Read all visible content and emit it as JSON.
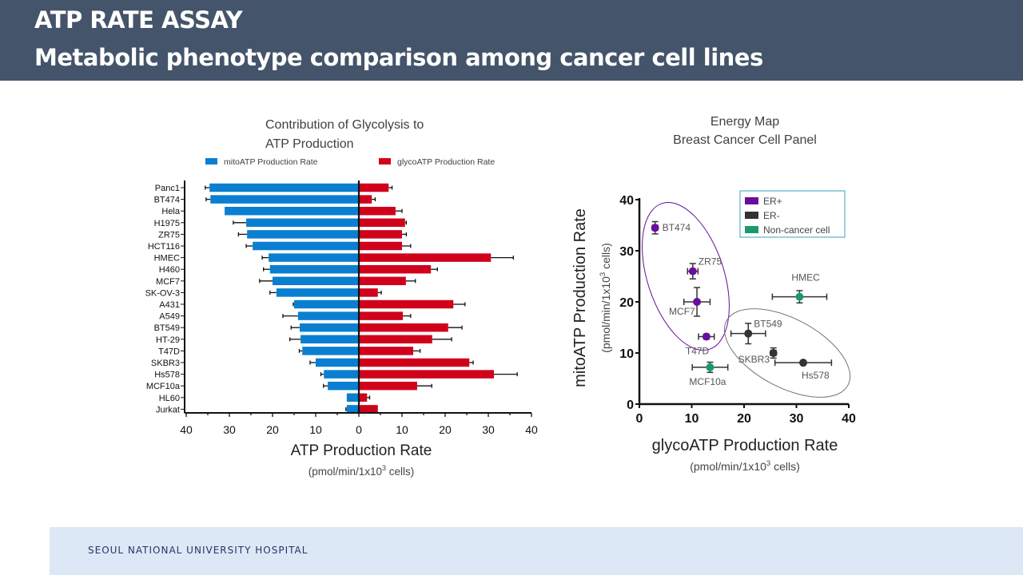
{
  "header": {
    "title": "ATP RATE ASSAY",
    "subtitle": "Metabolic phenotype comparison among cancer cell lines"
  },
  "footer": {
    "label": "SEOUL NATIONAL UNIVERSITY HOSPITAL"
  },
  "colors": {
    "header_bg": "#44546a",
    "footer_bg": "#dde8f6",
    "mito": "#0a7fd1",
    "glyco": "#d0021b",
    "er_pos": "#6a0d9c",
    "er_neg": "#333333",
    "non_cancer": "#1a9a6a"
  },
  "chart_data": [
    {
      "type": "bar",
      "orientation": "horizontal-diverging",
      "title_line1": "Contribution of Glycolysis to",
      "title_line2": "ATP Production",
      "xlabel": "ATP Production Rate",
      "xlabel_units": "(pmol/min/1x10",
      "xlabel_units_sup": "3",
      "xlabel_units_tail": " cells)",
      "xlim": [
        -40,
        40
      ],
      "xticks": [
        -40,
        -30,
        -20,
        -10,
        0,
        10,
        20,
        30,
        40
      ],
      "xtick_labels": [
        "40",
        "30",
        "20",
        "10",
        "0",
        "10",
        "20",
        "30",
        "40"
      ],
      "legend_position": "top",
      "categories": [
        "Panc1",
        "BT474",
        "Hela",
        "H1975",
        "ZR75",
        "HCT116",
        "HMEC",
        "H460",
        "MCF7",
        "SK-OV-3",
        "A431",
        "A549",
        "BT549",
        "HT-29",
        "T47D",
        "SKBR3",
        "Hs578",
        "MCF10a",
        "HL60",
        "Jurkat"
      ],
      "series": [
        {
          "name": "mitoATP Production Rate",
          "direction": "left",
          "values": [
            34.6,
            34.4,
            31.1,
            26.1,
            25.9,
            24.6,
            20.9,
            20.6,
            20.0,
            19.1,
            15.0,
            14.1,
            13.7,
            13.5,
            13.1,
            10.0,
            8.1,
            7.2,
            2.8,
            2.8
          ],
          "errors": [
            1.0,
            1.0,
            null,
            3.0,
            2.0,
            1.5,
            1.5,
            1.5,
            3.0,
            1.5,
            0.2,
            3.5,
            2.0,
            2.5,
            0.7,
            1.3,
            0.7,
            1.0,
            null,
            0.2
          ]
        },
        {
          "name": "glycoATP Production Rate",
          "direction": "right",
          "values": [
            6.9,
            3.0,
            8.5,
            10.7,
            10.0,
            10.0,
            30.6,
            16.7,
            10.9,
            4.4,
            21.9,
            10.2,
            20.7,
            17.0,
            12.6,
            25.6,
            31.3,
            13.5,
            1.9,
            4.4
          ],
          "errors": [
            0.8,
            0.8,
            1.5,
            0.3,
            1.0,
            2.0,
            5.2,
            1.5,
            2.2,
            0.8,
            2.7,
            1.8,
            3.2,
            4.5,
            1.6,
            0.9,
            5.4,
            3.4,
            0.6,
            null
          ]
        }
      ]
    },
    {
      "type": "scatter",
      "title_line1": "Energy Map",
      "title_line2": "Breast Cancer Cell Panel",
      "xlabel": "glycoATP Production Rate",
      "ylabel": "mitoATP Production Rate",
      "units": "(pmol/min/1x10",
      "units_sup": "3",
      "units_tail": " cells)",
      "xlim": [
        0,
        40
      ],
      "ylim": [
        0,
        40
      ],
      "xticks": [
        0,
        10,
        20,
        30,
        40
      ],
      "yticks": [
        0,
        10,
        20,
        30,
        40
      ],
      "legend_position": "top-right",
      "legend": [
        {
          "name": "ER+",
          "group": "er_pos"
        },
        {
          "name": "ER-",
          "group": "er_neg"
        },
        {
          "name": "Non-cancer cell",
          "group": "non_cancer"
        }
      ],
      "points": [
        {
          "label": "BT474",
          "x": 3.0,
          "y": 34.5,
          "xerr": 0.5,
          "yerr": 1.2,
          "group": "er_pos",
          "label_pos": "right"
        },
        {
          "label": "ZR75",
          "x": 10.2,
          "y": 26.0,
          "xerr": 1.0,
          "yerr": 1.5,
          "group": "er_pos",
          "label_pos": "upper-right"
        },
        {
          "label": "MCF7",
          "x": 11.0,
          "y": 20.0,
          "xerr": 2.5,
          "yerr": 2.8,
          "group": "er_pos",
          "label_pos": "lower-left"
        },
        {
          "label": "T47D",
          "x": 12.8,
          "y": 13.2,
          "xerr": 1.5,
          "yerr": 0.5,
          "group": "er_pos",
          "label_pos": "below"
        },
        {
          "label": "BT549",
          "x": 20.8,
          "y": 13.8,
          "xerr": 3.3,
          "yerr": 2.0,
          "group": "er_neg",
          "label_pos": "upper-right"
        },
        {
          "label": "SKBR3",
          "x": 25.6,
          "y": 10.0,
          "xerr": 0.5,
          "yerr": 1.0,
          "group": "er_neg",
          "label_pos": "left"
        },
        {
          "label": "Hs578",
          "x": 31.3,
          "y": 8.1,
          "xerr": 5.4,
          "yerr": 0.3,
          "group": "er_neg",
          "label_pos": "below-right"
        },
        {
          "label": "HMEC",
          "x": 30.6,
          "y": 21.0,
          "xerr": 5.2,
          "yerr": 1.2,
          "group": "non_cancer",
          "label_pos": "above"
        },
        {
          "label": "MCF10a",
          "x": 13.5,
          "y": 7.2,
          "xerr": 3.4,
          "yerr": 1.0,
          "group": "non_cancer",
          "label_pos": "below"
        }
      ],
      "clusters": [
        {
          "name": "ER+ cluster",
          "color": "er_pos"
        },
        {
          "name": "ER- cluster",
          "color": "grey"
        }
      ]
    }
  ]
}
